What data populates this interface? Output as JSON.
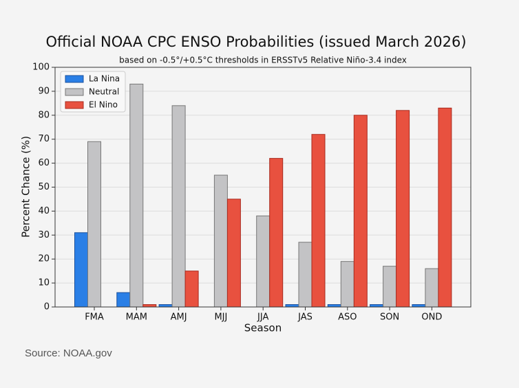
{
  "chart_data": {
    "type": "bar",
    "title": "Official NOAA CPC ENSO Probabilities (issued March 2026)",
    "subtitle": "based on -0.5°/+0.5°C thresholds in ERSSTv5 Relative Niño-3.4 index",
    "xlabel": "Season",
    "ylabel": "Percent Chance (%)",
    "categories": [
      "FMA",
      "MAM",
      "AMJ",
      "MJJ",
      "JJA",
      "JAS",
      "ASO",
      "SON",
      "OND"
    ],
    "series": [
      {
        "name": "La Nina",
        "color": "#2a7fe6",
        "values": [
          31,
          6,
          1,
          0,
          0,
          1,
          1,
          1,
          1
        ]
      },
      {
        "name": "Neutral",
        "color": "#c3c3c5",
        "values": [
          69,
          93,
          84,
          55,
          38,
          27,
          19,
          17,
          16
        ]
      },
      {
        "name": "El Nino",
        "color": "#e8513f",
        "values": [
          0,
          1,
          15,
          45,
          62,
          72,
          80,
          82,
          83
        ]
      }
    ],
    "ylim": [
      0,
      100
    ],
    "yticks": [
      0,
      10,
      20,
      30,
      40,
      50,
      60,
      70,
      80,
      90,
      100
    ],
    "grid": true,
    "legend": "upper left"
  },
  "source": "Source: NOAA.gov"
}
